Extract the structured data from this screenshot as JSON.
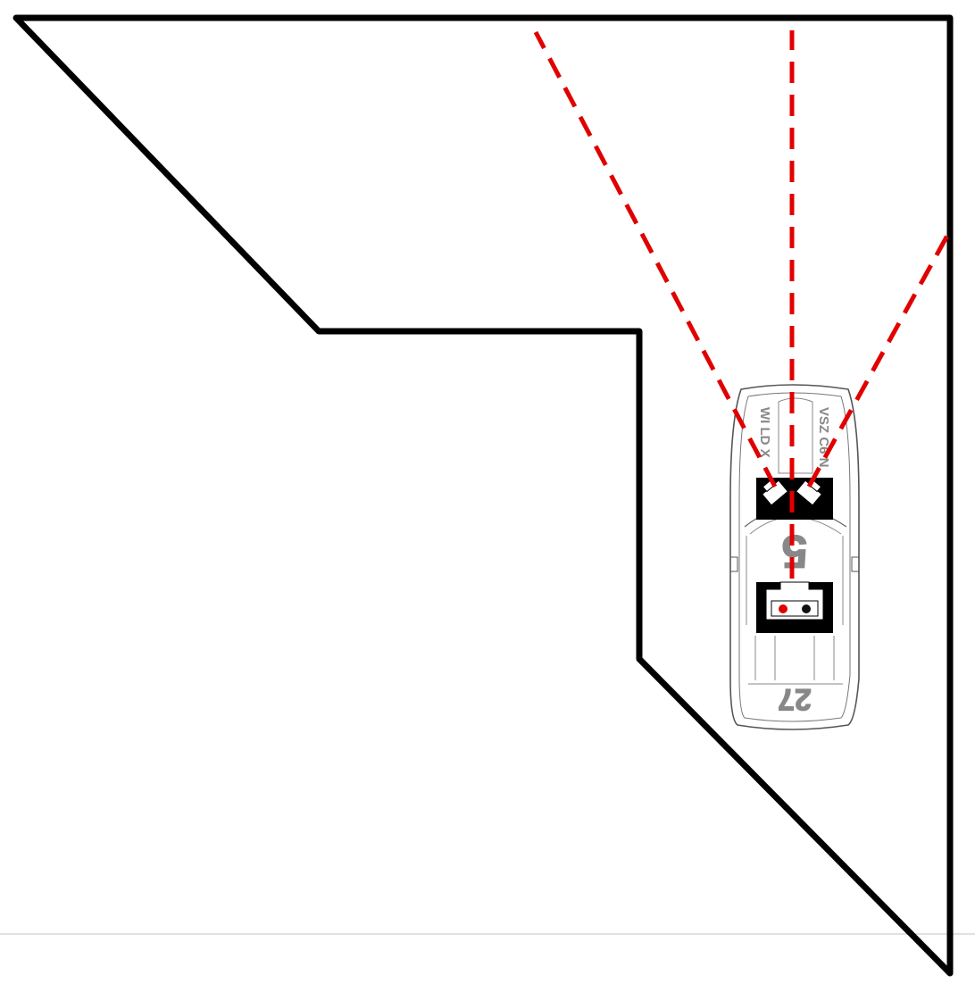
{
  "colors": {
    "background": "#ffffff",
    "track_wall": "#000000",
    "sensor_ray": "#e00000",
    "car_outline": "#555555",
    "bottom_rule": "#d0d0d0"
  },
  "car": {
    "decals": {
      "left_stripe": "WI LD X",
      "right_stripe": "VSZ C6 N",
      "hood_number": "5",
      "trunk_number": "27"
    },
    "status_lights": [
      "red",
      "black"
    ]
  },
  "sensor_rays": [
    {
      "name": "left",
      "style": "dashed"
    },
    {
      "name": "center",
      "style": "dashed"
    },
    {
      "name": "right",
      "style": "dashed"
    }
  ]
}
